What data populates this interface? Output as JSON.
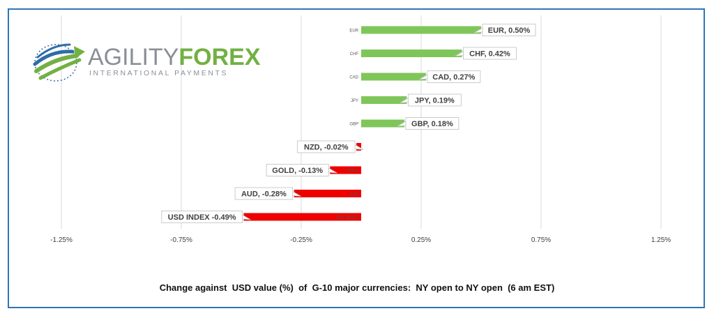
{
  "logo": {
    "name_part1": "AGILITY",
    "name_part2": "FOREX",
    "tagline": "INTERNATIONAL PAYMENTS",
    "colors": {
      "gray": "#8a8f96",
      "green": "#72b043",
      "blue": "#2e6da4"
    }
  },
  "caption": "Change against  USD value (%)  of  G-10 major currencies:  NY open to NY open  (6 am EST)",
  "chart_data": {
    "type": "bar",
    "orientation": "horizontal",
    "xlim": [
      -1.5,
      1.5
    ],
    "xticks": [
      -1.25,
      -0.75,
      -0.25,
      0.25,
      0.75,
      1.25
    ],
    "xtick_labels": [
      "-1.25%",
      "-0.75%",
      "-0.25%",
      "0.25%",
      "0.75%",
      "1.25%"
    ],
    "grid": "vertical",
    "categories": [
      "EUR",
      "CHF",
      "CAD",
      "JPY",
      "GBP",
      "NZD",
      "GOLD",
      "AUD",
      "USD INDEX"
    ],
    "values": [
      0.5,
      0.42,
      0.27,
      0.19,
      0.18,
      -0.02,
      -0.13,
      -0.28,
      -0.49
    ],
    "data_labels": [
      "EUR, 0.50%",
      "CHF, 0.42%",
      "CAD, 0.27%",
      "JPY, 0.19%",
      "GBP, 0.18%",
      "NZD, -0.02%",
      "GOLD, -0.13%",
      "AUD, -0.28%",
      "USD INDEX -0.49%"
    ],
    "colors": {
      "positive": "#7fc65a",
      "negative": "#ee0000",
      "grid": "#d9d9d9",
      "axis_text": "#404040",
      "label_border": "#bfbfbf"
    }
  }
}
